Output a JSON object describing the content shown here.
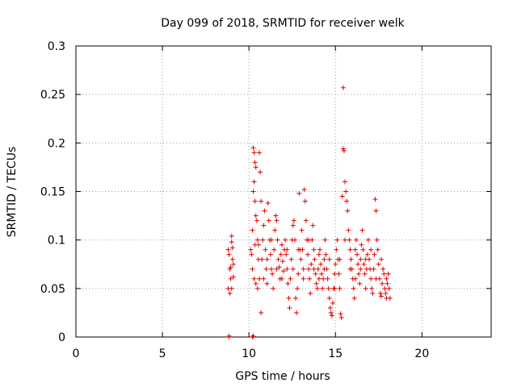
{
  "chart_data": {
    "type": "scatter",
    "title": "Day 099 of 2018, SRMTID for receiver welk",
    "xlabel": "GPS time / hours",
    "ylabel": "SRMTID / TECUs",
    "xlim": [
      0,
      24
    ],
    "ylim": [
      0,
      0.3
    ],
    "xticks": [
      0,
      5,
      10,
      15,
      20
    ],
    "xtick_labels": [
      "0",
      "5",
      "10",
      "15",
      "20"
    ],
    "yticks": [
      0,
      0.05,
      0.1,
      0.15,
      0.2,
      0.25,
      0.3
    ],
    "ytick_labels": [
      "0",
      "0.05",
      "0.1",
      "0.15",
      "0.2",
      "0.25",
      "0.3"
    ],
    "grid": true,
    "marker": "+",
    "marker_color": "#e00000",
    "series": [
      {
        "name": "SRMTID",
        "points": [
          [
            8.85,
            0.0
          ],
          [
            8.85,
            0.001
          ],
          [
            10.2,
            0.0
          ],
          [
            10.25,
            0.001
          ],
          [
            8.8,
            0.09
          ],
          [
            8.85,
            0.085
          ],
          [
            8.9,
            0.07
          ],
          [
            8.95,
            0.06
          ],
          [
            9.0,
            0.104
          ],
          [
            9.0,
            0.098
          ],
          [
            9.05,
            0.08
          ],
          [
            9.1,
            0.075
          ],
          [
            8.8,
            0.05
          ],
          [
            8.9,
            0.045
          ],
          [
            9.0,
            0.05
          ],
          [
            9.1,
            0.062
          ],
          [
            8.95,
            0.072
          ],
          [
            9.05,
            0.092
          ],
          [
            10.1,
            0.09
          ],
          [
            10.15,
            0.085
          ],
          [
            10.2,
            0.11
          ],
          [
            10.25,
            0.195
          ],
          [
            10.3,
            0.19
          ],
          [
            10.35,
            0.18
          ],
          [
            10.4,
            0.175
          ],
          [
            10.3,
            0.16
          ],
          [
            10.25,
            0.15
          ],
          [
            10.35,
            0.14
          ],
          [
            10.4,
            0.125
          ],
          [
            10.45,
            0.12
          ],
          [
            10.5,
            0.1
          ],
          [
            10.55,
            0.095
          ],
          [
            10.6,
            0.19
          ],
          [
            10.65,
            0.17
          ],
          [
            10.7,
            0.14
          ],
          [
            10.2,
            0.07
          ],
          [
            10.3,
            0.06
          ],
          [
            10.4,
            0.055
          ],
          [
            10.5,
            0.05
          ],
          [
            10.6,
            0.06
          ],
          [
            10.7,
            0.025
          ],
          [
            10.75,
            0.08
          ],
          [
            10.8,
            0.1
          ],
          [
            10.85,
            0.115
          ],
          [
            10.9,
            0.13
          ],
          [
            10.95,
            0.09
          ],
          [
            11.0,
            0.07
          ],
          [
            11.05,
            0.055
          ],
          [
            11.1,
            0.138
          ],
          [
            11.15,
            0.12
          ],
          [
            11.2,
            0.1
          ],
          [
            11.25,
            0.085
          ],
          [
            11.3,
            0.07
          ],
          [
            11.35,
            0.065
          ],
          [
            11.4,
            0.05
          ],
          [
            11.45,
            0.09
          ],
          [
            11.5,
            0.11
          ],
          [
            11.55,
            0.125
          ],
          [
            11.6,
            0.12
          ],
          [
            11.65,
            0.1
          ],
          [
            11.7,
            0.08
          ],
          [
            11.75,
            0.072
          ],
          [
            11.8,
            0.06
          ],
          [
            11.85,
            0.085
          ],
          [
            11.9,
            0.095
          ],
          [
            11.95,
            0.078
          ],
          [
            12.0,
            0.068
          ],
          [
            12.05,
            0.09
          ],
          [
            12.1,
            0.1
          ],
          [
            12.15,
            0.085
          ],
          [
            12.2,
            0.07
          ],
          [
            12.25,
            0.055
          ],
          [
            12.3,
            0.04
          ],
          [
            12.35,
            0.03
          ],
          [
            12.4,
            0.06
          ],
          [
            12.45,
            0.08
          ],
          [
            12.5,
            0.1
          ],
          [
            12.55,
            0.115
          ],
          [
            12.6,
            0.12
          ],
          [
            12.65,
            0.1
          ],
          [
            12.7,
            0.04
          ],
          [
            12.75,
            0.025
          ],
          [
            12.8,
            0.05
          ],
          [
            12.85,
            0.065
          ],
          [
            12.9,
            0.148
          ],
          [
            12.95,
            0.09
          ],
          [
            13.0,
            0.08
          ],
          [
            13.05,
            0.11
          ],
          [
            13.1,
            0.09
          ],
          [
            13.15,
            0.07
          ],
          [
            13.2,
            0.152
          ],
          [
            13.25,
            0.14
          ],
          [
            13.3,
            0.12
          ],
          [
            13.35,
            0.1
          ],
          [
            13.4,
            0.085
          ],
          [
            13.45,
            0.07
          ],
          [
            13.5,
            0.06
          ],
          [
            13.55,
            0.045
          ],
          [
            13.6,
            0.075
          ],
          [
            13.65,
            0.1
          ],
          [
            13.7,
            0.115
          ],
          [
            13.75,
            0.09
          ],
          [
            13.8,
            0.08
          ],
          [
            13.85,
            0.065
          ],
          [
            13.9,
            0.055
          ],
          [
            13.95,
            0.05
          ],
          [
            14.0,
            0.07
          ],
          [
            14.05,
            0.085
          ],
          [
            14.1,
            0.09
          ],
          [
            14.15,
            0.075
          ],
          [
            14.2,
            0.065
          ],
          [
            14.25,
            0.05
          ],
          [
            14.3,
            0.06
          ],
          [
            14.35,
            0.08
          ],
          [
            14.4,
            0.1
          ],
          [
            14.45,
            0.085
          ],
          [
            14.5,
            0.07
          ],
          [
            14.55,
            0.06
          ],
          [
            14.6,
            0.05
          ],
          [
            14.65,
            0.04
          ],
          [
            14.7,
            0.03
          ],
          [
            14.75,
            0.025
          ],
          [
            14.8,
            0.022
          ],
          [
            14.85,
            0.035
          ],
          [
            14.9,
            0.05
          ],
          [
            14.95,
            0.065
          ],
          [
            15.0,
            0.075
          ],
          [
            15.05,
            0.09
          ],
          [
            15.1,
            0.1
          ],
          [
            15.15,
            0.08
          ],
          [
            15.2,
            0.065
          ],
          [
            15.25,
            0.05
          ],
          [
            15.3,
            0.024
          ],
          [
            15.35,
            0.02
          ],
          [
            15.4,
            0.145
          ],
          [
            15.45,
            0.194
          ],
          [
            15.5,
            0.192
          ],
          [
            15.55,
            0.16
          ],
          [
            15.45,
            0.257
          ],
          [
            15.6,
            0.15
          ],
          [
            15.65,
            0.14
          ],
          [
            15.7,
            0.13
          ],
          [
            15.75,
            0.11
          ],
          [
            15.8,
            0.1
          ],
          [
            15.85,
            0.09
          ],
          [
            15.9,
            0.08
          ],
          [
            15.95,
            0.07
          ],
          [
            16.0,
            0.06
          ],
          [
            16.05,
            0.05
          ],
          [
            16.1,
            0.04
          ],
          [
            16.15,
            0.09
          ],
          [
            16.2,
            0.1
          ],
          [
            16.25,
            0.085
          ],
          [
            16.3,
            0.075
          ],
          [
            16.35,
            0.065
          ],
          [
            16.4,
            0.055
          ],
          [
            16.45,
            0.08
          ],
          [
            16.5,
            0.095
          ],
          [
            16.55,
            0.11
          ],
          [
            16.6,
            0.09
          ],
          [
            16.65,
            0.075
          ],
          [
            16.7,
            0.065
          ],
          [
            16.75,
            0.05
          ],
          [
            16.8,
            0.07
          ],
          [
            16.85,
            0.085
          ],
          [
            16.9,
            0.1
          ],
          [
            16.95,
            0.08
          ],
          [
            17.0,
            0.07
          ],
          [
            17.05,
            0.06
          ],
          [
            17.1,
            0.05
          ],
          [
            17.15,
            0.045
          ],
          [
            17.2,
            0.07
          ],
          [
            17.25,
            0.085
          ],
          [
            17.3,
            0.142
          ],
          [
            17.35,
            0.13
          ],
          [
            17.4,
            0.1
          ],
          [
            17.45,
            0.09
          ],
          [
            17.5,
            0.075
          ],
          [
            17.55,
            0.06
          ],
          [
            17.6,
            0.045
          ],
          [
            17.65,
            0.042
          ],
          [
            17.7,
            0.055
          ],
          [
            17.75,
            0.07
          ],
          [
            17.8,
            0.065
          ],
          [
            17.85,
            0.05
          ],
          [
            17.9,
            0.045
          ],
          [
            17.95,
            0.04
          ],
          [
            18.0,
            0.055
          ],
          [
            18.05,
            0.065
          ],
          [
            18.1,
            0.05
          ],
          [
            18.15,
            0.04
          ],
          [
            10.35,
            0.095
          ],
          [
            10.55,
            0.08
          ],
          [
            10.85,
            0.06
          ],
          [
            11.05,
            0.08
          ],
          [
            11.3,
            0.1
          ],
          [
            11.6,
            0.07
          ],
          [
            11.9,
            0.06
          ],
          [
            12.2,
            0.09
          ],
          [
            12.55,
            0.07
          ],
          [
            12.85,
            0.09
          ],
          [
            13.15,
            0.06
          ],
          [
            13.45,
            0.1
          ],
          [
            13.75,
            0.07
          ],
          [
            14.05,
            0.06
          ],
          [
            14.35,
            0.07
          ],
          [
            14.65,
            0.08
          ],
          [
            14.95,
            0.05
          ],
          [
            15.25,
            0.08
          ],
          [
            15.55,
            0.1
          ],
          [
            15.85,
            0.07
          ],
          [
            16.15,
            0.06
          ],
          [
            16.45,
            0.07
          ],
          [
            16.75,
            0.08
          ],
          [
            17.05,
            0.09
          ],
          [
            17.35,
            0.06
          ],
          [
            17.65,
            0.08
          ],
          [
            17.95,
            0.06
          ]
        ]
      }
    ]
  }
}
